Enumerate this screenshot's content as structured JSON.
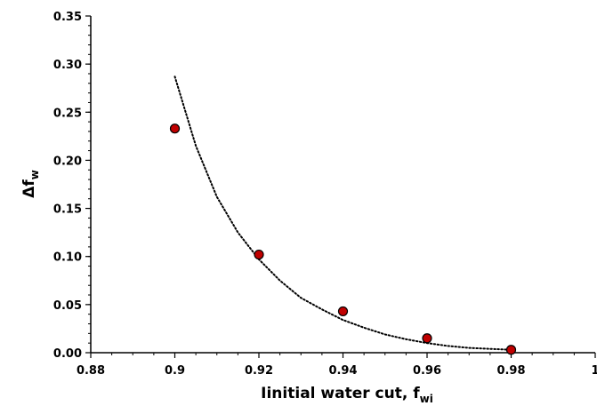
{
  "chart_data": {
    "type": "scatter",
    "xlabel": "Iinitial water cut, f",
    "xlabel_sub": "wi",
    "ylabel": "Δf",
    "ylabel_sub": "w",
    "xlim": [
      0.88,
      1.0
    ],
    "ylim": [
      0.0,
      0.35
    ],
    "x_ticks": [
      "0.88",
      "0.9",
      "0.92",
      "0.94",
      "0.96",
      "0.98",
      "1"
    ],
    "y_ticks": [
      "0.00",
      "0.05",
      "0.10",
      "0.15",
      "0.20",
      "0.25",
      "0.30",
      "0.35"
    ],
    "grid": false,
    "legend": "none",
    "series": [
      {
        "kind": "points",
        "x": [
          0.9,
          0.92,
          0.94,
          0.96,
          0.98
        ],
        "y": [
          0.233,
          0.102,
          0.043,
          0.015,
          0.003
        ]
      },
      {
        "kind": "trendline",
        "style": "dotted",
        "x": [
          0.9,
          0.905,
          0.91,
          0.915,
          0.92,
          0.925,
          0.93,
          0.935,
          0.94,
          0.945,
          0.95,
          0.955,
          0.96,
          0.965,
          0.97,
          0.975,
          0.98
        ],
        "y": [
          0.287,
          0.215,
          0.162,
          0.125,
          0.097,
          0.075,
          0.057,
          0.045,
          0.034,
          0.026,
          0.019,
          0.014,
          0.01,
          0.007,
          0.005,
          0.004,
          0.003
        ]
      }
    ],
    "colors": {
      "marker_fill": "#c00000",
      "marker_stroke": "#000000",
      "trendline": "#000000",
      "axis": "#000000"
    }
  }
}
